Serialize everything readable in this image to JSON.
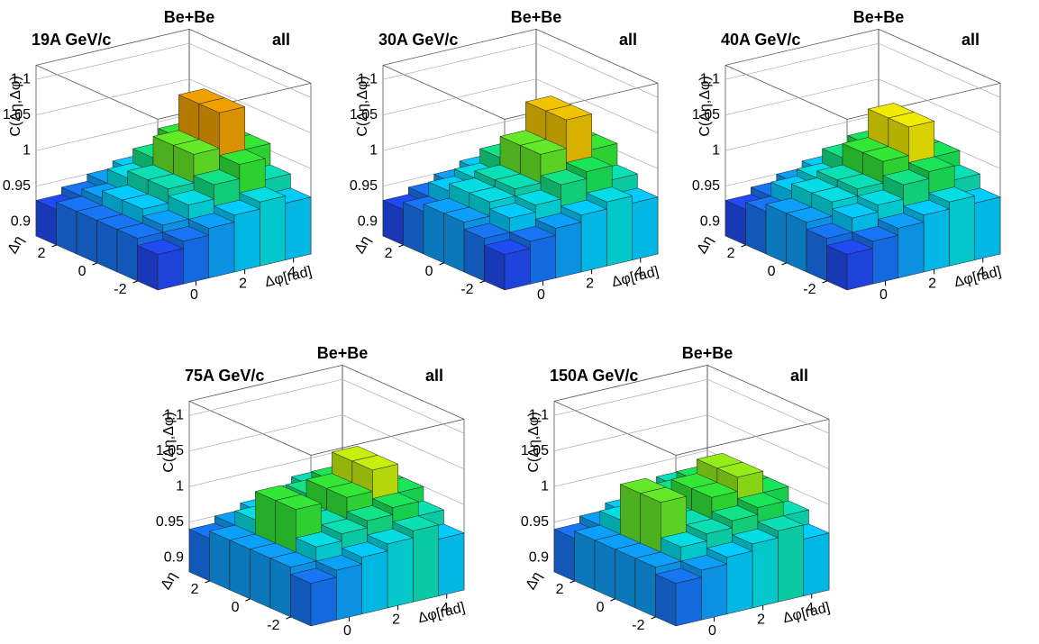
{
  "chart_data": [
    {
      "type": "lego3d",
      "title": "Be+Be",
      "subtitle": "19A GeV/c",
      "annotation": "all",
      "xlabel": "Δφ[rad]",
      "ylabel": "Δη",
      "zlabel": "C(Δη,Δφ)",
      "x": [
        -1.047,
        0,
        1.047,
        2.094,
        3.142,
        4.189
      ],
      "y": [
        -2.5,
        -1.5,
        -0.5,
        0.5,
        1.5,
        2.5
      ],
      "xlim": [
        -1.571,
        4.712
      ],
      "ylim": [
        -3,
        3
      ],
      "zlim": [
        0.88,
        1.12
      ],
      "xticks": [
        0,
        2,
        4
      ],
      "yticks": [
        -2,
        0,
        2
      ],
      "zticks": [
        0.9,
        0.95,
        1,
        1.05,
        1.1
      ],
      "values": [
        [
          0.93,
          0.94,
          0.95,
          0.96,
          0.97,
          0.96
        ],
        [
          0.94,
          0.95,
          0.97,
          0.99,
          1.01,
          0.98
        ],
        [
          0.94,
          0.96,
          0.98,
          1.02,
          1.07,
          1.01
        ],
        [
          0.94,
          0.96,
          0.98,
          1.02,
          1.07,
          1.01
        ],
        [
          0.94,
          0.95,
          0.97,
          0.99,
          1.01,
          0.98
        ],
        [
          0.93,
          0.94,
          0.95,
          0.96,
          0.97,
          0.96
        ]
      ]
    },
    {
      "type": "lego3d",
      "title": "Be+Be",
      "subtitle": "30A GeV/c",
      "annotation": "all",
      "xlabel": "Δφ[rad]",
      "ylabel": "Δη",
      "zlabel": "C(Δη,Δφ)",
      "x": [
        -1.047,
        0,
        1.047,
        2.094,
        3.142,
        4.189
      ],
      "y": [
        -2.5,
        -1.5,
        -0.5,
        0.5,
        1.5,
        2.5
      ],
      "xlim": [
        -1.571,
        4.712
      ],
      "ylim": [
        -3,
        3
      ],
      "zlim": [
        0.88,
        1.12
      ],
      "xticks": [
        0,
        2,
        4
      ],
      "yticks": [
        -2,
        0,
        2
      ],
      "zticks": [
        0.9,
        0.95,
        1,
        1.05,
        1.1
      ],
      "values": [
        [
          0.93,
          0.94,
          0.95,
          0.96,
          0.97,
          0.96
        ],
        [
          0.94,
          0.96,
          0.97,
          0.99,
          1.0,
          0.98
        ],
        [
          0.95,
          0.97,
          0.98,
          1.02,
          1.06,
          1.01
        ],
        [
          0.95,
          0.97,
          0.98,
          1.02,
          1.06,
          1.01
        ],
        [
          0.94,
          0.96,
          0.97,
          0.99,
          1.0,
          0.98
        ],
        [
          0.93,
          0.94,
          0.95,
          0.96,
          0.97,
          0.96
        ]
      ]
    },
    {
      "type": "lego3d",
      "title": "Be+Be",
      "subtitle": "40A GeV/c",
      "annotation": "all",
      "xlabel": "Δφ[rad]",
      "ylabel": "Δη",
      "zlabel": "C(Δη,Δφ)",
      "x": [
        -1.047,
        0,
        1.047,
        2.094,
        3.142,
        4.189
      ],
      "y": [
        -2.5,
        -1.5,
        -0.5,
        0.5,
        1.5,
        2.5
      ],
      "xlim": [
        -1.571,
        4.712
      ],
      "ylim": [
        -3,
        3
      ],
      "zlim": [
        0.88,
        1.12
      ],
      "xticks": [
        0,
        2,
        4
      ],
      "yticks": [
        -2,
        0,
        2
      ],
      "zticks": [
        0.9,
        0.95,
        1,
        1.05,
        1.1
      ],
      "values": [
        [
          0.93,
          0.94,
          0.95,
          0.96,
          0.97,
          0.96
        ],
        [
          0.94,
          0.96,
          0.97,
          0.99,
          1.0,
          0.98
        ],
        [
          0.95,
          0.97,
          0.98,
          1.01,
          1.05,
          1.0
        ],
        [
          0.95,
          0.97,
          0.98,
          1.01,
          1.05,
          1.0
        ],
        [
          0.94,
          0.96,
          0.97,
          0.99,
          1.0,
          0.98
        ],
        [
          0.93,
          0.94,
          0.95,
          0.96,
          0.97,
          0.96
        ]
      ]
    },
    {
      "type": "lego3d",
      "title": "Be+Be",
      "subtitle": "75A GeV/c",
      "annotation": "all",
      "xlabel": "Δφ[rad]",
      "ylabel": "Δη",
      "zlabel": "C(Δη,Δφ)",
      "x": [
        -1.047,
        0,
        1.047,
        2.094,
        3.142,
        4.189
      ],
      "y": [
        -2.5,
        -1.5,
        -0.5,
        0.5,
        1.5,
        2.5
      ],
      "xlim": [
        -1.571,
        4.712
      ],
      "ylim": [
        -3,
        3
      ],
      "zlim": [
        0.88,
        1.12
      ],
      "xticks": [
        0,
        2,
        4
      ],
      "yticks": [
        -2,
        0,
        2
      ],
      "zticks": [
        0.9,
        0.95,
        1,
        1.05,
        1.1
      ],
      "values": [
        [
          0.94,
          0.95,
          0.96,
          0.97,
          0.98,
          0.96
        ],
        [
          0.95,
          0.97,
          0.98,
          0.99,
          1.0,
          0.98
        ],
        [
          0.95,
          1.01,
          0.98,
          1.01,
          1.04,
          1.0
        ],
        [
          0.95,
          1.01,
          0.98,
          1.01,
          1.04,
          1.0
        ],
        [
          0.95,
          0.97,
          0.98,
          0.99,
          1.0,
          0.98
        ],
        [
          0.94,
          0.95,
          0.96,
          0.97,
          0.98,
          0.96
        ]
      ]
    },
    {
      "type": "lego3d",
      "title": "Be+Be",
      "subtitle": "150A GeV/c",
      "annotation": "all",
      "xlabel": "Δφ[rad]",
      "ylabel": "Δη",
      "zlabel": "C(Δη,Δφ)",
      "x": [
        -1.047,
        0,
        1.047,
        2.094,
        3.142,
        4.189
      ],
      "y": [
        -2.5,
        -1.5,
        -0.5,
        0.5,
        1.5,
        2.5
      ],
      "xlim": [
        -1.571,
        4.712
      ],
      "ylim": [
        -3,
        3
      ],
      "zlim": [
        0.88,
        1.12
      ],
      "xticks": [
        0,
        2,
        4
      ],
      "yticks": [
        -2,
        0,
        2
      ],
      "zticks": [
        0.9,
        0.95,
        1,
        1.05,
        1.1
      ],
      "values": [
        [
          0.94,
          0.95,
          0.96,
          0.97,
          0.98,
          0.96
        ],
        [
          0.95,
          0.97,
          0.98,
          0.99,
          1.0,
          0.98
        ],
        [
          0.95,
          1.02,
          0.98,
          1.01,
          1.03,
          1.0
        ],
        [
          0.95,
          1.02,
          0.98,
          1.01,
          1.03,
          1.0
        ],
        [
          0.95,
          0.97,
          0.98,
          0.99,
          1.0,
          0.98
        ],
        [
          0.94,
          0.95,
          0.96,
          0.97,
          0.98,
          0.96
        ]
      ]
    }
  ]
}
